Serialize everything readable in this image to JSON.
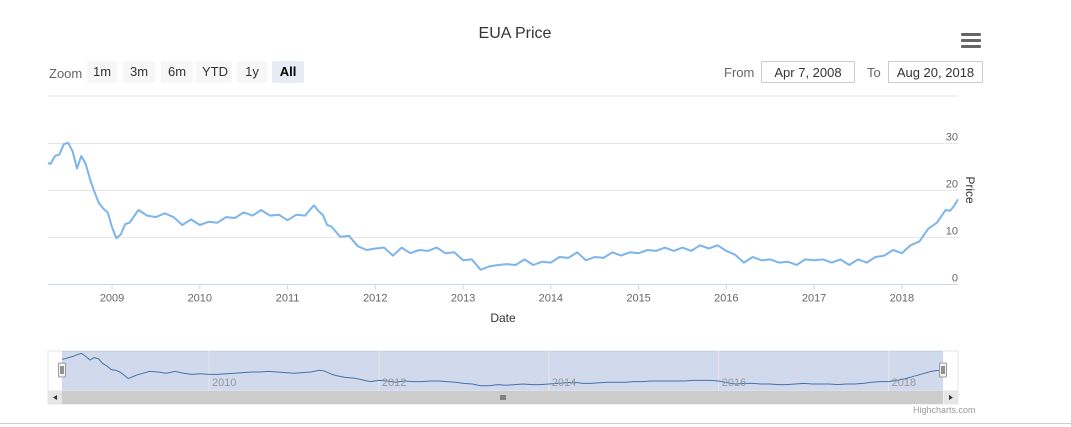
{
  "title": "EUA Price",
  "toolbar": {
    "zoom_label": "Zoom",
    "buttons": [
      "1m",
      "3m",
      "6m",
      "YTD",
      "1y",
      "All"
    ],
    "active": "All",
    "from_label": "From",
    "from_value": "Apr 7, 2008",
    "to_label": "To",
    "to_value": "Aug 20, 2018"
  },
  "credits": "Highcharts.com",
  "chart_data": {
    "type": "line",
    "xlabel": "Date",
    "ylabel": "Price",
    "ylim": [
      0,
      40
    ],
    "y_ticks": [
      0,
      10,
      20,
      30
    ],
    "x_ticks": [
      "2009",
      "2010",
      "2011",
      "2012",
      "2013",
      "2014",
      "2015",
      "2016",
      "2017",
      "2018"
    ],
    "navigator_ticks": [
      "2010",
      "2012",
      "2014",
      "2016",
      "2018"
    ],
    "grid": true,
    "color": "#7cb5ec",
    "series": [
      {
        "x": [
          2008.27,
          2008.3,
          2008.35,
          2008.4,
          2008.45,
          2008.5,
          2008.55,
          2008.6,
          2008.65,
          2008.7,
          2008.75,
          2008.8,
          2008.85,
          2008.9,
          2008.95,
          2009.0,
          2009.05,
          2009.1,
          2009.15,
          2009.2,
          2009.3,
          2009.4,
          2009.5,
          2009.6,
          2009.7,
          2009.8,
          2009.9,
          2010.0,
          2010.1,
          2010.2,
          2010.3,
          2010.4,
          2010.5,
          2010.6,
          2010.7,
          2010.8,
          2010.9,
          2011.0,
          2011.1,
          2011.2,
          2011.3,
          2011.35,
          2011.4,
          2011.45,
          2011.5,
          2011.6,
          2011.7,
          2011.8,
          2011.9,
          2012.0,
          2012.1,
          2012.2,
          2012.3,
          2012.4,
          2012.5,
          2012.6,
          2012.7,
          2012.8,
          2012.9,
          2013.0,
          2013.1,
          2013.2,
          2013.3,
          2013.4,
          2013.5,
          2013.6,
          2013.7,
          2013.8,
          2013.9,
          2014.0,
          2014.1,
          2014.2,
          2014.3,
          2014.4,
          2014.5,
          2014.6,
          2014.7,
          2014.8,
          2014.9,
          2015.0,
          2015.1,
          2015.2,
          2015.3,
          2015.4,
          2015.5,
          2015.6,
          2015.7,
          2015.8,
          2015.9,
          2016.0,
          2016.1,
          2016.2,
          2016.3,
          2016.4,
          2016.5,
          2016.6,
          2016.7,
          2016.8,
          2016.9,
          2017.0,
          2017.1,
          2017.2,
          2017.3,
          2017.4,
          2017.5,
          2017.6,
          2017.7,
          2017.8,
          2017.9,
          2018.0,
          2018.1,
          2018.2,
          2018.3,
          2018.4,
          2018.5,
          2018.55,
          2018.6,
          2018.64
        ],
        "y": [
          25.5,
          26,
          27,
          28,
          29.5,
          30.5,
          28,
          25,
          27,
          26,
          22,
          20,
          17,
          16.5,
          15,
          12.5,
          9.5,
          11,
          12.5,
          13.5,
          15.5,
          15,
          14,
          15.5,
          14,
          13,
          13.5,
          13,
          13,
          13.5,
          14,
          14.5,
          15,
          15,
          15.5,
          15,
          14.5,
          14,
          14.5,
          15,
          16.5,
          16,
          14.5,
          13,
          12,
          10.5,
          10,
          8.5,
          7,
          8,
          7.5,
          6.5,
          7.5,
          7,
          7,
          7.5,
          7.5,
          7,
          6.5,
          5.5,
          5,
          3.5,
          3.5,
          4.5,
          4,
          4.5,
          5,
          4.5,
          4.5,
          5,
          5.5,
          6,
          6.5,
          5.5,
          5.5,
          6,
          6.5,
          6.5,
          6.5,
          7,
          7,
          7.5,
          7.5,
          7.5,
          7.5,
          7.5,
          8,
          8,
          8,
          7.5,
          6,
          5,
          5.5,
          5.5,
          5,
          5,
          4.5,
          4.5,
          5,
          5.5,
          5,
          5,
          5,
          4.5,
          5,
          5,
          5.5,
          6.5,
          7,
          7,
          8,
          9.5,
          11.5,
          13.5,
          15.5,
          16,
          16.5,
          18.5
        ]
      }
    ]
  }
}
